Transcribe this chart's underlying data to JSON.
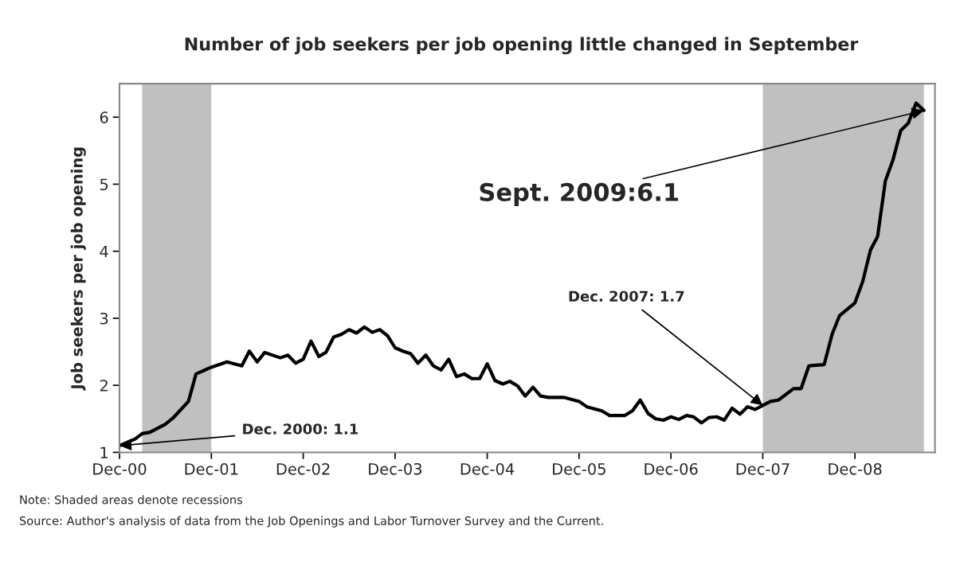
{
  "chart_data": {
    "type": "line",
    "title": "Number of job seekers per job opening little changed in September",
    "ylabel": "Job seekers per job opening",
    "x": [
      "2000-12",
      "2001-02",
      "2001-03",
      "2001-04",
      "2001-06",
      "2001-07",
      "2001-09",
      "2001-10",
      "2001-12",
      "2002-02",
      "2002-04",
      "2002-05",
      "2002-06",
      "2002-07",
      "2002-09",
      "2002-10",
      "2002-11",
      "2002-12",
      "2003-01",
      "2003-02",
      "2003-03",
      "2003-04",
      "2003-05",
      "2003-06",
      "2003-07",
      "2003-08",
      "2003-09",
      "2003-10",
      "2003-11",
      "2003-12",
      "2004-01",
      "2004-02",
      "2004-03",
      "2004-04",
      "2004-05",
      "2004-06",
      "2004-07",
      "2004-08",
      "2004-09",
      "2004-10",
      "2004-11",
      "2004-12",
      "2005-01",
      "2005-02",
      "2005-03",
      "2005-04",
      "2005-05",
      "2005-06",
      "2005-07",
      "2005-08",
      "2005-10",
      "2005-12",
      "2006-01",
      "2006-03",
      "2006-04",
      "2006-06",
      "2006-07",
      "2006-08",
      "2006-09",
      "2006-10",
      "2006-11",
      "2006-12",
      "2007-01",
      "2007-02",
      "2007-03",
      "2007-04",
      "2007-05",
      "2007-06",
      "2007-07",
      "2007-08",
      "2007-09",
      "2007-10",
      "2007-11",
      "2007-12",
      "2008-01",
      "2008-02",
      "2008-04",
      "2008-05",
      "2008-06",
      "2008-08",
      "2008-09",
      "2008-10",
      "2008-12",
      "2009-01",
      "2009-02",
      "2009-03",
      "2009-04",
      "2009-05",
      "2009-06",
      "2009-07",
      "2009-08",
      "2009-09"
    ],
    "series": [
      {
        "color": "#000000",
        "values": [
          1.1,
          1.2,
          1.28,
          1.3,
          1.42,
          1.51,
          1.76,
          2.17,
          2.27,
          2.35,
          2.29,
          2.51,
          2.35,
          2.49,
          2.41,
          2.45,
          2.33,
          2.39,
          2.66,
          2.43,
          2.49,
          2.72,
          2.76,
          2.83,
          2.78,
          2.87,
          2.79,
          2.83,
          2.74,
          2.56,
          2.51,
          2.47,
          2.33,
          2.45,
          2.29,
          2.23,
          2.39,
          2.13,
          2.17,
          2.1,
          2.1,
          2.32,
          2.07,
          2.02,
          2.06,
          1.99,
          1.84,
          1.97,
          1.84,
          1.82,
          1.82,
          1.76,
          1.68,
          1.62,
          1.55,
          1.55,
          1.62,
          1.78,
          1.58,
          1.5,
          1.48,
          1.53,
          1.49,
          1.55,
          1.53,
          1.44,
          1.52,
          1.53,
          1.48,
          1.66,
          1.57,
          1.68,
          1.64,
          1.7,
          1.76,
          1.78,
          1.95,
          1.95,
          2.29,
          2.31,
          2.76,
          3.04,
          3.23,
          3.55,
          4.02,
          4.22,
          5.05,
          5.36,
          5.8,
          5.91,
          6.21,
          6.1
        ]
      }
    ],
    "xlim": [
      "2000-12",
      "2009-10-15"
    ],
    "xticks": [
      {
        "value": "2000-12",
        "label": "Dec-00"
      },
      {
        "value": "2001-12",
        "label": "Dec-01"
      },
      {
        "value": "2002-12",
        "label": "Dec-02"
      },
      {
        "value": "2003-12",
        "label": "Dec-03"
      },
      {
        "value": "2004-12",
        "label": "Dec-04"
      },
      {
        "value": "2005-12",
        "label": "Dec-05"
      },
      {
        "value": "2006-12",
        "label": "Dec-06"
      },
      {
        "value": "2007-12",
        "label": "Dec-07"
      },
      {
        "value": "2008-12",
        "label": "Dec-08"
      }
    ],
    "ylim": [
      1,
      6.5
    ],
    "yticks": [
      1,
      2,
      3,
      4,
      5,
      6
    ],
    "bands": [
      {
        "axis": "x",
        "from": "2001-03",
        "to": "2001-12",
        "color": "#c0c0c0"
      },
      {
        "axis": "x",
        "from": "2007-12",
        "to": "2009-09",
        "color": "#c0c0c0"
      }
    ],
    "annotations": [
      {
        "text": "Dec. 2000: 1.1",
        "x": "2000-12",
        "y": 1.1
      },
      {
        "text": "Dec. 2007: 1.7",
        "x": "2007-12",
        "y": 1.7
      },
      {
        "text": "Sept. 2009:6.1",
        "x": "2009-09",
        "y": 6.1
      },
      "Note: Shaded areas denote recessions",
      "Source: Author's analysis of data from the Job Openings and Labor Turnover Survey and the Current."
    ],
    "grid": false
  }
}
